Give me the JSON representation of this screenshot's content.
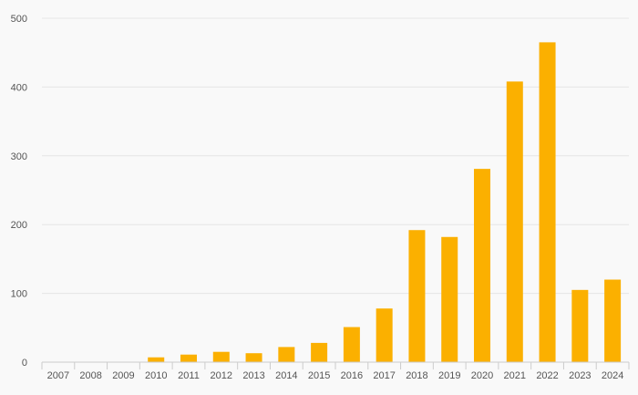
{
  "chart_data": {
    "type": "bar",
    "categories": [
      "2007",
      "2008",
      "2009",
      "2010",
      "2011",
      "2012",
      "2013",
      "2014",
      "2015",
      "2016",
      "2017",
      "2018",
      "2019",
      "2020",
      "2021",
      "2022",
      "2023",
      "2024"
    ],
    "values": [
      0,
      0,
      0,
      7,
      11,
      15,
      13,
      22,
      28,
      51,
      78,
      192,
      182,
      281,
      408,
      465,
      105,
      120
    ],
    "ylim": [
      0,
      500
    ],
    "yticks": [
      0,
      100,
      200,
      300,
      400,
      500
    ],
    "title": "",
    "xlabel": "",
    "ylabel": "",
    "grid": true,
    "legend": "none",
    "bar_color": "#fbb000",
    "grid_color": "#e6e6e6",
    "axis_color": "#cccccc"
  }
}
